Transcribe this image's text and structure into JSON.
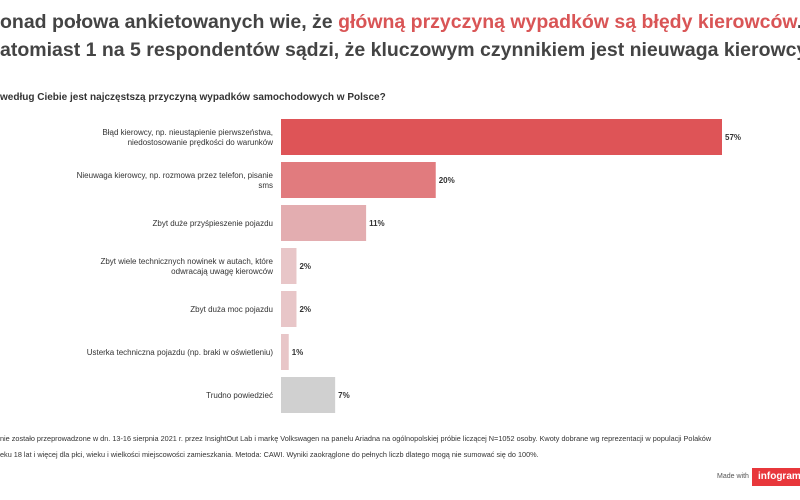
{
  "headline": {
    "line1_pre": "onad połowa ankietowanych wie, że ",
    "line1_highlight": "główną przyczyną wypadków są błędy kierowców",
    "line1_post": ".",
    "line2": "atomiast 1 na 5 respondentów sądzi, że kluczowym czynnikiem jest nieuwaga kierowcy"
  },
  "question": "według Ciebie jest najczęstszą przyczyną wypadków samochodowych w Polsce?",
  "chart_data": {
    "type": "bar",
    "orientation": "horizontal",
    "categories": [
      [
        "Błąd kierowcy, np. nieustąpienie pierwszeństwa,",
        "niedostosowanie prędkości do warunków"
      ],
      [
        "Nieuwaga kierowcy, np. rozmowa przez telefon, pisanie",
        "sms"
      ],
      [
        "Zbyt duże przyśpieszenie pojazdu"
      ],
      [
        "Zbyt wiele technicznych nowinek w autach, które",
        "odwracają uwagę kierowców"
      ],
      [
        "Zbyt duża moc pojazdu"
      ],
      [
        "Usterka techniczna pojazdu (np. braki w oświetleniu)"
      ],
      [
        "Trudno powiedzieć"
      ]
    ],
    "values": [
      57,
      20,
      11,
      2,
      2,
      1,
      7
    ],
    "value_labels": [
      "57%",
      "20%",
      "11%",
      "2%",
      "2%",
      "1%",
      "7%"
    ],
    "colors": [
      "#de5457",
      "#e17b7e",
      "#e3adb0",
      "#e8c6c8",
      "#e8c6c8",
      "#e8c6c8",
      "#d0d0d0"
    ],
    "xlim": [
      0,
      57
    ],
    "grid": false,
    "legend": "none"
  },
  "footnote": {
    "line1": "nie zostało przeprowadzone w dn. 13-16 sierpnia 2021 r. przez InsightOut Lab i markę Volkswagen na panelu Ariadna na ogólnopolskiej próbie liczącej N=1052 osoby. Kwoty dobrane wg reprezentacji w populacji Polaków",
    "line2": "eku 18 lat i więcej dla płci, wieku i wielkości miejscowości zamieszkania. Metoda: CAWI. Wyniki zaokrąglone do pełnych liczb dlatego mogą nie sumować się do 100%."
  },
  "branding": {
    "made_with": "Made with",
    "brand": "infogram"
  }
}
